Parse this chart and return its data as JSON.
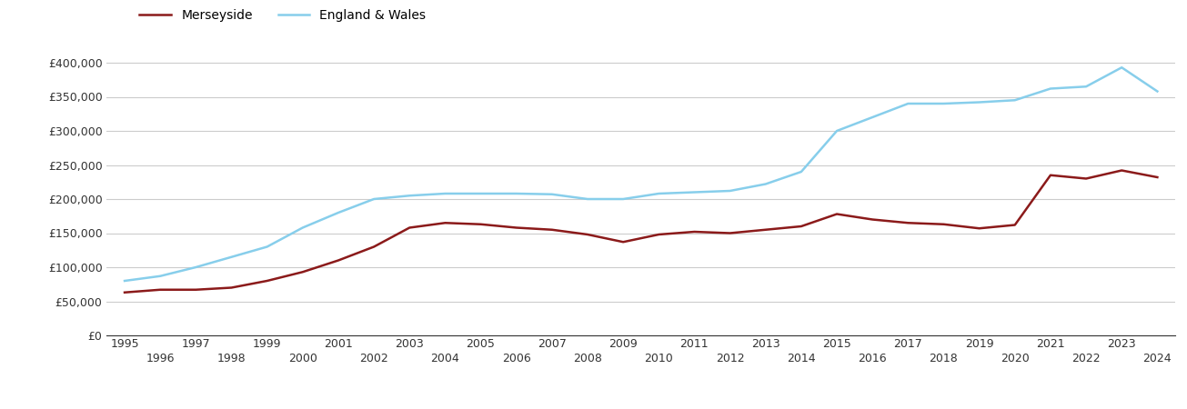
{
  "years": [
    1995,
    1996,
    1997,
    1998,
    1999,
    2000,
    2001,
    2002,
    2003,
    2004,
    2005,
    2006,
    2007,
    2008,
    2009,
    2010,
    2011,
    2012,
    2013,
    2014,
    2015,
    2016,
    2017,
    2018,
    2019,
    2020,
    2021,
    2022,
    2023,
    2024
  ],
  "merseyside": [
    63000,
    67000,
    67000,
    70000,
    80000,
    93000,
    110000,
    130000,
    158000,
    165000,
    163000,
    158000,
    155000,
    148000,
    137000,
    148000,
    152000,
    150000,
    155000,
    160000,
    178000,
    170000,
    165000,
    163000,
    157000,
    162000,
    235000,
    230000,
    242000,
    232000
  ],
  "england_wales": [
    80000,
    87000,
    100000,
    115000,
    130000,
    158000,
    180000,
    200000,
    205000,
    208000,
    208000,
    208000,
    207000,
    200000,
    200000,
    208000,
    210000,
    212000,
    222000,
    240000,
    300000,
    320000,
    340000,
    340000,
    342000,
    345000,
    362000,
    365000,
    393000,
    358000
  ],
  "merseyside_color": "#8B1A1A",
  "england_wales_color": "#87CEEB",
  "background_color": "#ffffff",
  "grid_color": "#cccccc",
  "ylim": [
    0,
    420000
  ],
  "ytick_values": [
    0,
    50000,
    100000,
    150000,
    200000,
    250000,
    300000,
    350000,
    400000
  ],
  "legend_merseyside": "Merseyside",
  "legend_england_wales": "England & Wales",
  "line_width": 1.8
}
